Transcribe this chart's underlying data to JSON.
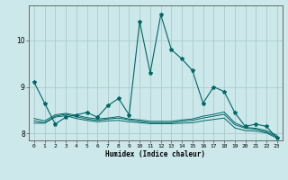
{
  "title": "",
  "xlabel": "Humidex (Indice chaleur)",
  "xlim": [
    -0.5,
    23.5
  ],
  "ylim": [
    7.85,
    10.75
  ],
  "yticks": [
    8,
    9,
    10
  ],
  "xticks": [
    0,
    1,
    2,
    3,
    4,
    5,
    6,
    7,
    8,
    9,
    10,
    11,
    12,
    13,
    14,
    15,
    16,
    17,
    18,
    19,
    20,
    21,
    22,
    23
  ],
  "bg_color": "#cce8ea",
  "grid_color": "#aacccc",
  "line_color": "#006666",
  "line1": [
    9.1,
    8.65,
    8.2,
    8.35,
    8.4,
    8.45,
    8.35,
    8.6,
    8.75,
    8.4,
    10.4,
    9.3,
    10.55,
    9.8,
    9.6,
    9.35,
    8.65,
    9.0,
    8.9,
    8.45,
    8.15,
    8.2,
    8.15,
    7.9
  ],
  "line2": [
    8.22,
    8.22,
    8.35,
    8.38,
    8.32,
    8.28,
    8.25,
    8.27,
    8.28,
    8.25,
    8.23,
    8.21,
    8.21,
    8.21,
    8.22,
    8.23,
    8.27,
    8.3,
    8.33,
    8.12,
    8.06,
    8.05,
    8.01,
    7.9
  ],
  "line3": [
    8.27,
    8.23,
    8.37,
    8.41,
    8.36,
    8.31,
    8.28,
    8.31,
    8.33,
    8.29,
    8.26,
    8.23,
    8.23,
    8.23,
    8.26,
    8.28,
    8.33,
    8.37,
    8.41,
    8.19,
    8.11,
    8.09,
    8.03,
    7.93
  ],
  "line4": [
    8.32,
    8.27,
    8.4,
    8.43,
    8.39,
    8.34,
    8.31,
    8.33,
    8.36,
    8.31,
    8.29,
    8.26,
    8.26,
    8.26,
    8.29,
    8.31,
    8.37,
    8.41,
    8.46,
    8.23,
    8.13,
    8.11,
    8.06,
    7.96
  ]
}
